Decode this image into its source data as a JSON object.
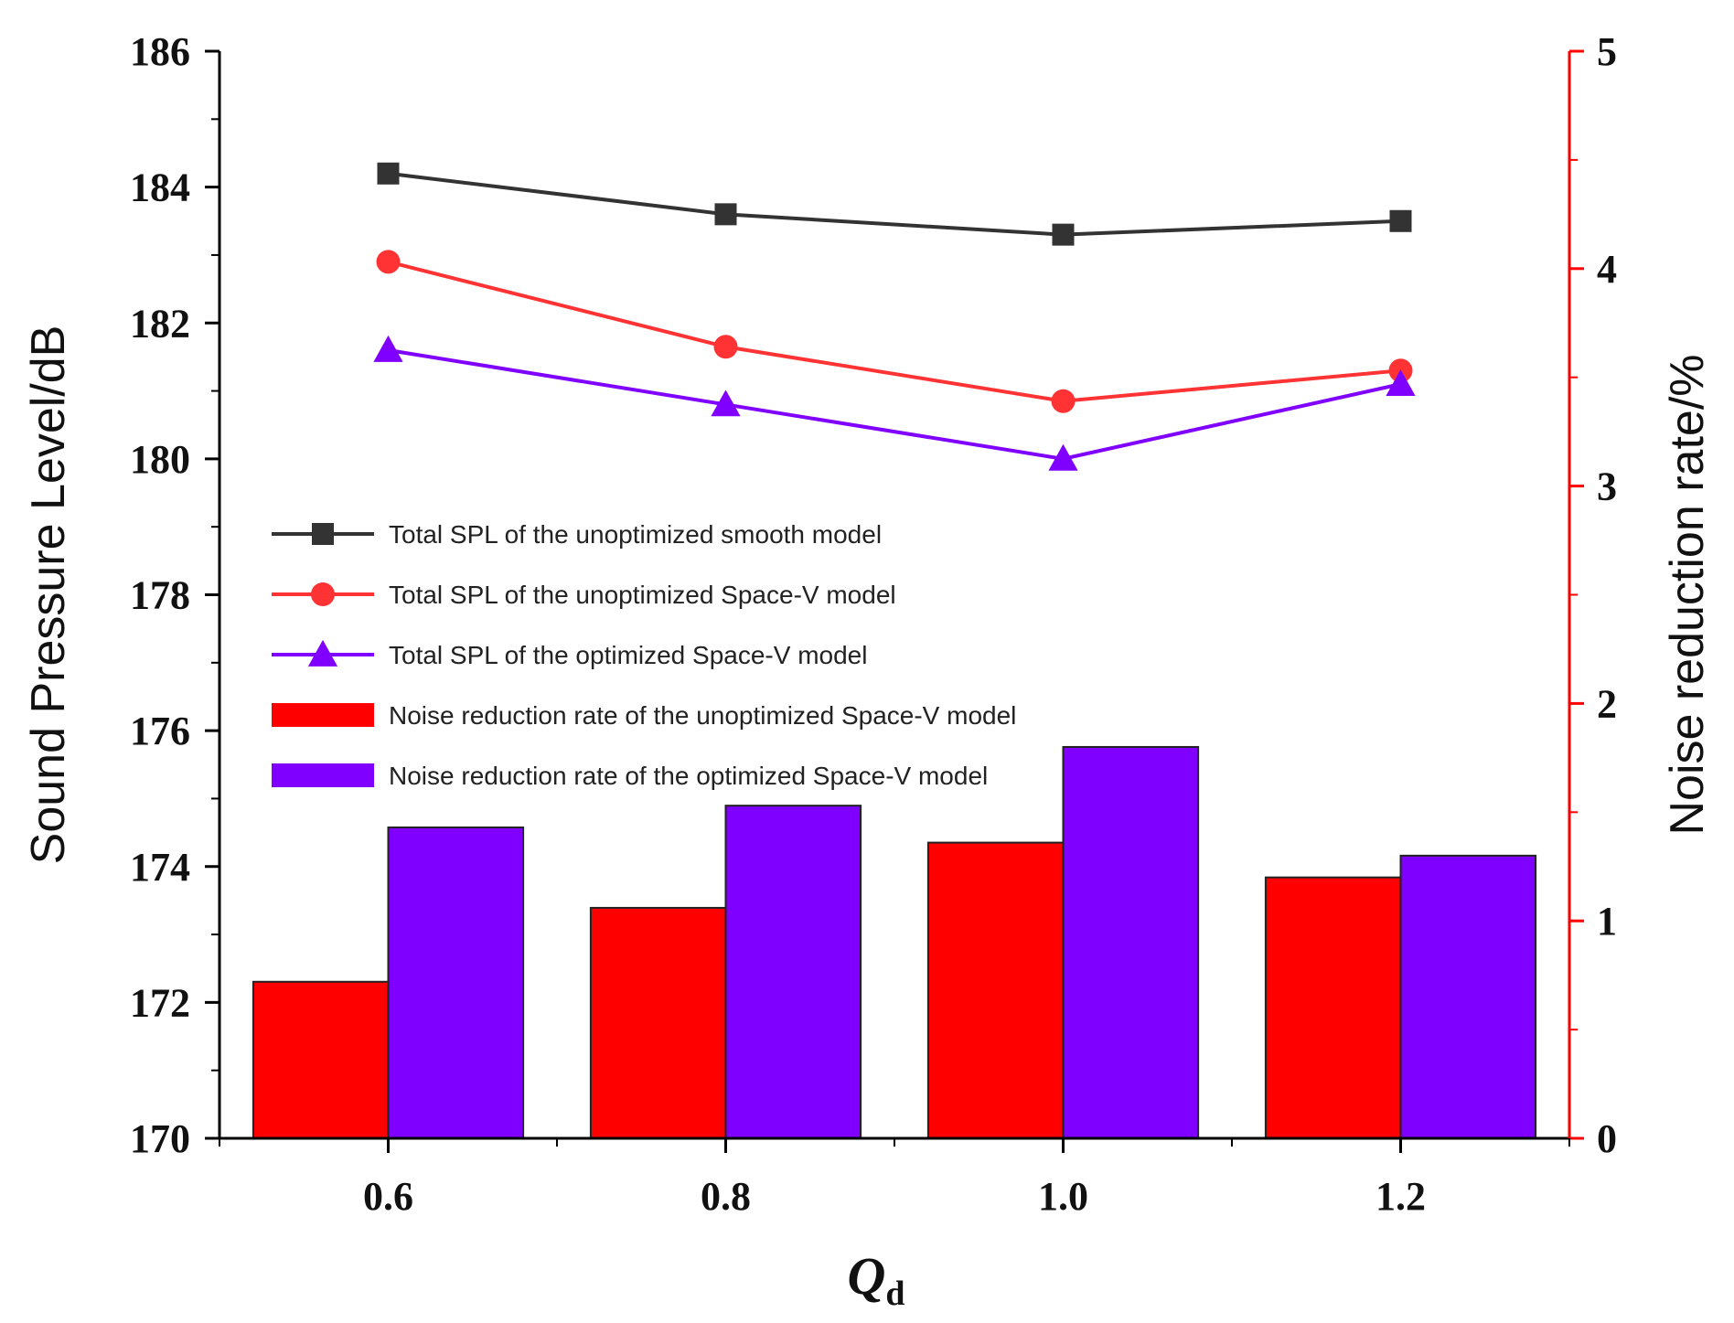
{
  "chart_data": {
    "type": "bar+line",
    "title": "",
    "x": [
      0.6,
      0.8,
      1.0,
      1.2
    ],
    "x_tick_labels": [
      "0.6",
      "0.8",
      "1.0",
      "1.2"
    ],
    "xlabel": "Q",
    "xlabel_subscript": "d",
    "ylabel_left": "Sound Pressure Level/dB",
    "ylabel_right": "Noise reduction rate/%",
    "ylim_left": [
      170,
      186
    ],
    "ylim_right": [
      0,
      5
    ],
    "y_left_ticks": [
      "170",
      "172",
      "174",
      "176",
      "178",
      "180",
      "182",
      "184",
      "186"
    ],
    "y_right_ticks": [
      "0",
      "1",
      "2",
      "3",
      "4",
      "5"
    ],
    "right_axis_color": "#ff0000",
    "line_series": [
      {
        "name": "Total SPL of the unoptimized smooth model",
        "axis": "left",
        "marker": "square",
        "color": "#333333",
        "values": [
          184.2,
          183.6,
          183.3,
          183.5
        ]
      },
      {
        "name": "Total SPL of the unoptimized Space-V model",
        "axis": "left",
        "marker": "circle",
        "color": "#ff3333",
        "values": [
          182.9,
          181.65,
          180.85,
          181.3
        ]
      },
      {
        "name": "Total SPL of the optimized Space-V model",
        "axis": "left",
        "marker": "triangle",
        "color": "#8000ff",
        "values": [
          181.6,
          180.8,
          180.0,
          181.1
        ]
      }
    ],
    "bar_series": [
      {
        "name": "Noise reduction rate of the unoptimized Space-V model",
        "axis": "right",
        "color": "#ff0000",
        "values": [
          0.72,
          1.06,
          1.36,
          1.2
        ]
      },
      {
        "name": "Noise reduction rate of the optimized Space-V model",
        "axis": "right",
        "color": "#8000ff",
        "values": [
          1.43,
          1.53,
          1.8,
          1.3
        ]
      }
    ],
    "legend_position": "center-left"
  }
}
